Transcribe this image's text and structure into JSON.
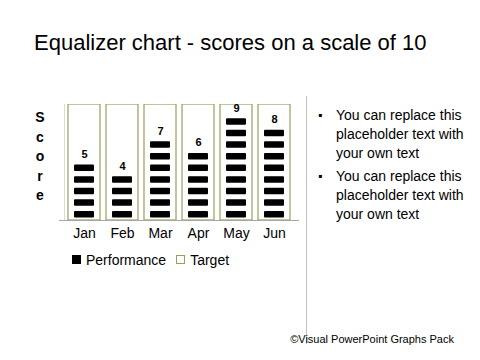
{
  "chart_data": {
    "type": "bar",
    "title": "Equalizer chart - scores on a scale of 10",
    "ylabel": "Score",
    "categories": [
      "Jan",
      "Feb",
      "Mar",
      "Apr",
      "May",
      "Jun"
    ],
    "series": [
      {
        "name": "Performance",
        "color": "#000000",
        "values": [
          5,
          4,
          7,
          6,
          9,
          8
        ],
        "data_labels": true
      },
      {
        "name": "Target",
        "color": "#9c9c5c",
        "values": [
          10,
          10,
          10,
          10,
          10,
          10
        ]
      }
    ],
    "ylim": [
      0,
      10
    ],
    "tick_labels": "x",
    "legend": "bottom",
    "annotations": [
      "You can replace this placeholder text with your own text",
      "You can replace this placeholder text with your own text"
    ],
    "caption": "©Visual PowerPoint Graphs Pack"
  }
}
